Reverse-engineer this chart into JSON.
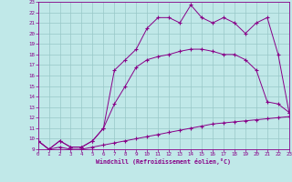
{
  "xlabel": "Windchill (Refroidissement éolien,°C)",
  "xlim": [
    0,
    23
  ],
  "ylim": [
    9,
    23
  ],
  "xticks": [
    0,
    1,
    2,
    3,
    4,
    5,
    6,
    7,
    8,
    9,
    10,
    11,
    12,
    13,
    14,
    15,
    16,
    17,
    18,
    19,
    20,
    21,
    22,
    23
  ],
  "yticks": [
    9,
    10,
    11,
    12,
    13,
    14,
    15,
    16,
    17,
    18,
    19,
    20,
    21,
    22,
    23
  ],
  "bg_color": "#c0e8e8",
  "line_color": "#880088",
  "grid_color": "#98c8c8",
  "curve1_x": [
    0,
    1,
    2,
    3,
    4,
    5,
    6,
    7,
    8,
    9,
    10,
    11,
    12,
    13,
    14,
    15,
    16,
    17,
    18,
    19,
    20,
    21,
    22,
    23
  ],
  "curve1_y": [
    9.8,
    9.0,
    9.2,
    9.0,
    9.0,
    9.2,
    9.4,
    9.6,
    9.8,
    10.0,
    10.2,
    10.4,
    10.6,
    10.8,
    11.0,
    11.2,
    11.4,
    11.5,
    11.6,
    11.7,
    11.8,
    11.9,
    12.0,
    12.1
  ],
  "curve2_x": [
    0,
    1,
    2,
    3,
    4,
    5,
    6,
    7,
    8,
    9,
    10,
    11,
    12,
    13,
    14,
    15,
    16,
    17,
    18,
    19,
    20,
    21,
    22,
    23
  ],
  "curve2_y": [
    9.8,
    9.0,
    9.8,
    9.2,
    9.2,
    9.8,
    11.0,
    13.3,
    15.0,
    16.8,
    17.5,
    17.8,
    18.0,
    18.3,
    18.5,
    18.5,
    18.3,
    18.0,
    18.0,
    17.5,
    16.5,
    13.5,
    13.3,
    12.5
  ],
  "curve3_x": [
    0,
    1,
    2,
    3,
    4,
    5,
    6,
    7,
    8,
    9,
    10,
    11,
    12,
    13,
    14,
    15,
    16,
    17,
    18,
    19,
    20,
    21,
    22,
    23
  ],
  "curve3_y": [
    9.8,
    9.0,
    9.8,
    9.2,
    9.2,
    9.8,
    11.0,
    16.5,
    17.5,
    18.5,
    20.5,
    21.5,
    21.5,
    21.0,
    22.7,
    21.5,
    21.0,
    21.5,
    21.0,
    20.0,
    21.0,
    21.5,
    18.0,
    12.5
  ]
}
